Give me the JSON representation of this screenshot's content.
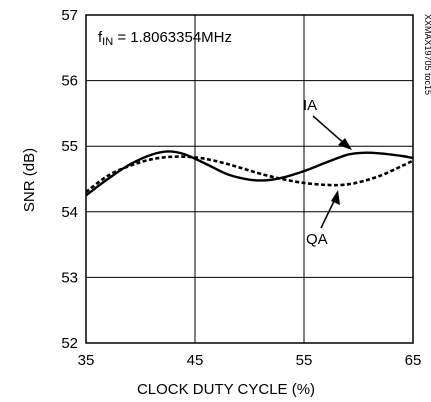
{
  "chart_data": {
    "type": "line",
    "title": "",
    "xlabel": "CLOCK DUTY CYCLE (%)",
    "ylabel": "SNR (dB)",
    "xlim": [
      35,
      65
    ],
    "ylim": [
      52,
      57
    ],
    "xticks": [
      35,
      45,
      55,
      65
    ],
    "yticks": [
      52,
      53,
      54,
      55,
      56,
      57
    ],
    "grid": true,
    "annotation": {
      "prefix": "f",
      "subscript": "IN",
      "value": " = 1.8063354MHz"
    },
    "side_label": "XXMAX19705 toc15",
    "series": [
      {
        "name": "IA",
        "style": "solid",
        "x": [
          35,
          37,
          39,
          41,
          42.5,
          44,
          46,
          48,
          50,
          51.5,
          53,
          55,
          57,
          59,
          60.5,
          62,
          64,
          65
        ],
        "y": [
          54.25,
          54.5,
          54.72,
          54.87,
          54.92,
          54.88,
          54.73,
          54.57,
          54.49,
          54.48,
          54.52,
          54.62,
          54.75,
          54.87,
          54.9,
          54.89,
          54.85,
          54.82
        ]
      },
      {
        "name": "QA",
        "style": "dashed",
        "x": [
          35,
          37,
          39,
          41,
          43,
          45,
          47,
          49,
          51,
          53,
          55,
          57,
          58.5,
          60,
          62,
          64,
          65
        ],
        "y": [
          54.3,
          54.55,
          54.7,
          54.8,
          54.84,
          54.83,
          54.77,
          54.68,
          54.58,
          54.5,
          54.44,
          54.41,
          54.41,
          54.45,
          54.55,
          54.7,
          54.78
        ]
      }
    ]
  }
}
